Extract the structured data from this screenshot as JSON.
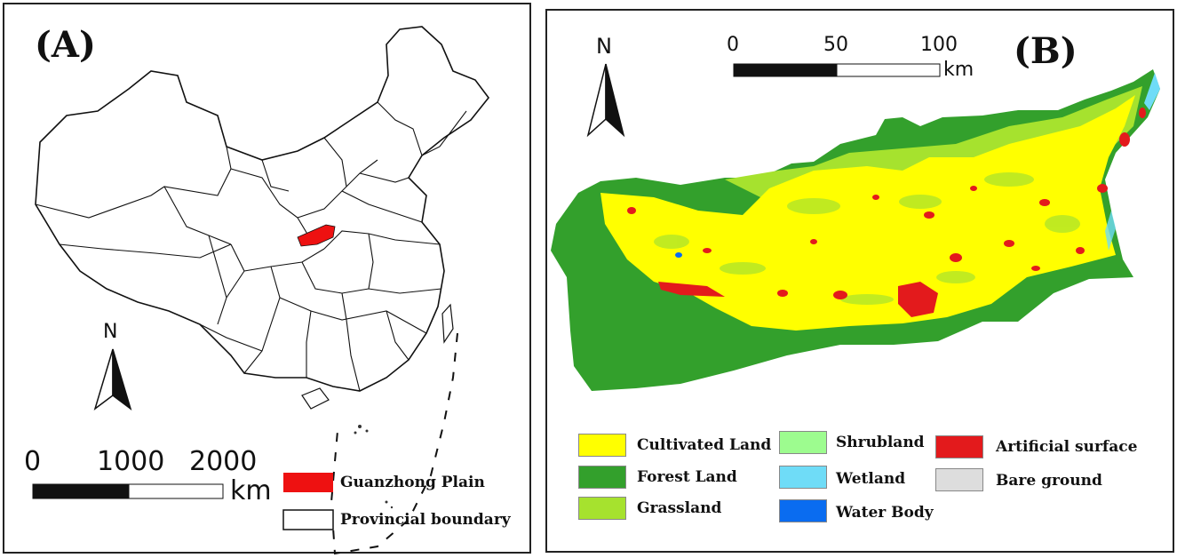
{
  "panel_a": {
    "label": "(A)",
    "north": "N",
    "scale": {
      "ticks": [
        "0",
        "1000",
        "2000"
      ],
      "unit": "km"
    },
    "legend": [
      {
        "label": "Guanzhong Plain",
        "color": "#ee1111",
        "icon": "red-filled-rectangle"
      },
      {
        "label": "Provincial boundary",
        "color": "#ffffff",
        "icon": "outlined-rectangle"
      }
    ],
    "colors": {
      "highlight": "#ee1111",
      "boundary": "#111111"
    }
  },
  "panel_b": {
    "label": "(B)",
    "north": "N",
    "scale": {
      "ticks": [
        "0",
        "50",
        "100"
      ],
      "unit": "km"
    },
    "legend": [
      {
        "label": "Cultivated Land",
        "color": "#ffff00"
      },
      {
        "label": "Forest Land",
        "color": "#33a02c"
      },
      {
        "label": "Grassland",
        "color": "#a6e22e"
      },
      {
        "label": "Shrubland",
        "color": "#9dfc8f"
      },
      {
        "label": "Wetland",
        "color": "#6fdcf7"
      },
      {
        "label": "Water Body",
        "color": "#0a6cf0"
      },
      {
        "label": "Artificial surface",
        "color": "#e31a1c"
      },
      {
        "label": "Bare ground",
        "color": "#dddddd"
      }
    ]
  }
}
